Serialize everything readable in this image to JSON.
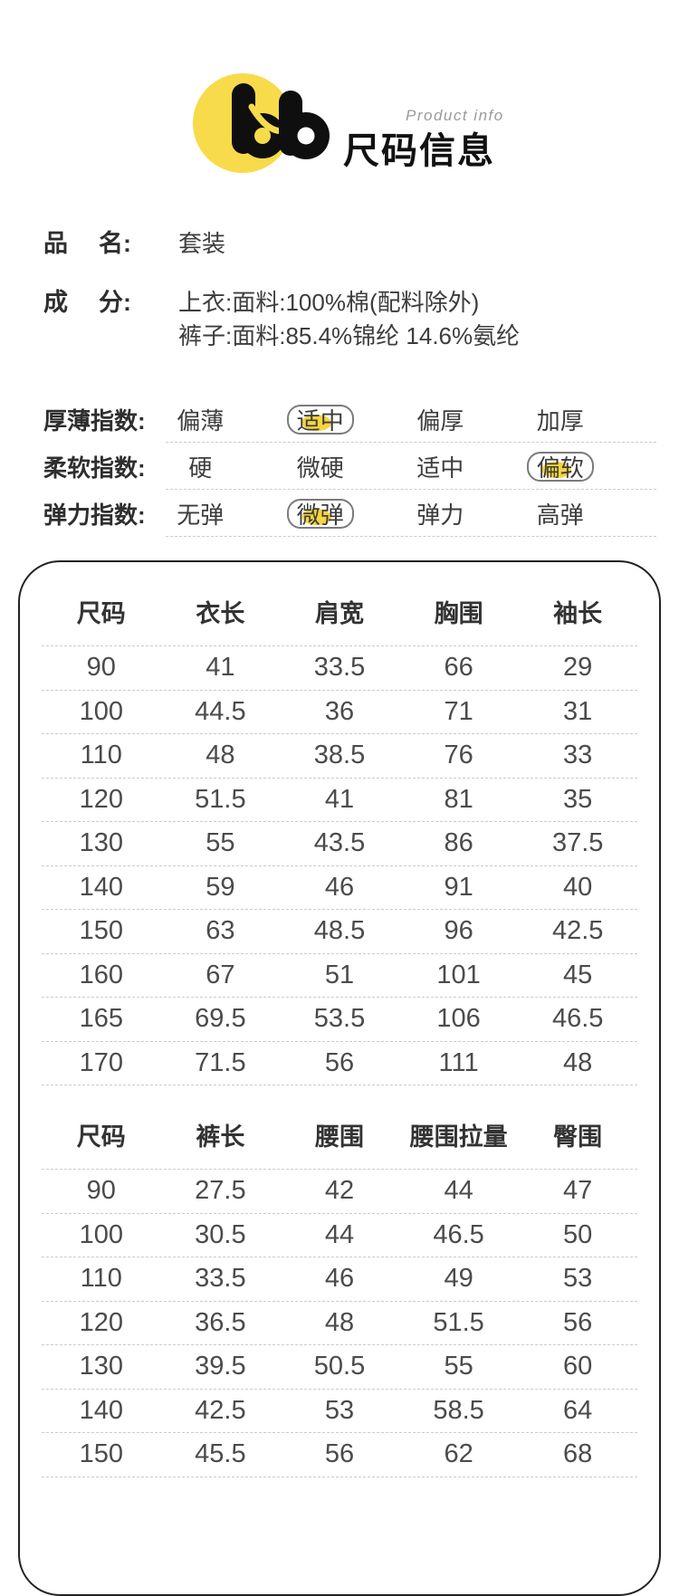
{
  "brand": {
    "logo_icon": "bb-logo",
    "tagline": "Product info",
    "title": "尺码信息"
  },
  "product": {
    "name_label": [
      "品",
      "名:"
    ],
    "name_value": "套装",
    "composition_label": [
      "成",
      "分:"
    ],
    "composition_lines": [
      "上衣:面料:100%棉(配料除外)",
      "裤子:面料:85.4%锦纶 14.6%氨纶"
    ]
  },
  "indexes": [
    {
      "label": "厚薄指数:",
      "options": [
        {
          "text": "偏薄",
          "selected": false
        },
        {
          "text": "适中",
          "selected": true
        },
        {
          "text": "偏厚",
          "selected": false
        },
        {
          "text": "加厚",
          "selected": false
        }
      ]
    },
    {
      "label": "柔软指数:",
      "options": [
        {
          "text": "硬",
          "selected": false
        },
        {
          "text": "微硬",
          "selected": false
        },
        {
          "text": "适中",
          "selected": false
        },
        {
          "text": "偏软",
          "selected": true
        }
      ]
    },
    {
      "label": "弹力指数:",
      "options": [
        {
          "text": "无弹",
          "selected": false
        },
        {
          "text": "微弹",
          "selected": true
        },
        {
          "text": "弹力",
          "selected": false
        },
        {
          "text": "高弹",
          "selected": false
        }
      ]
    }
  ],
  "size_tables": [
    {
      "headers": [
        "尺码",
        "衣长",
        "肩宽",
        "胸围",
        "袖长"
      ],
      "rows": [
        [
          "90",
          "41",
          "33.5",
          "66",
          "29"
        ],
        [
          "100",
          "44.5",
          "36",
          "71",
          "31"
        ],
        [
          "110",
          "48",
          "38.5",
          "76",
          "33"
        ],
        [
          "120",
          "51.5",
          "41",
          "81",
          "35"
        ],
        [
          "130",
          "55",
          "43.5",
          "86",
          "37.5"
        ],
        [
          "140",
          "59",
          "46",
          "91",
          "40"
        ],
        [
          "150",
          "63",
          "48.5",
          "96",
          "42.5"
        ],
        [
          "160",
          "67",
          "51",
          "101",
          "45"
        ],
        [
          "165",
          "69.5",
          "53.5",
          "106",
          "46.5"
        ],
        [
          "170",
          "71.5",
          "56",
          "111",
          "48"
        ]
      ]
    },
    {
      "headers": [
        "尺码",
        "裤长",
        "腰围",
        "腰围拉量",
        "臀围"
      ],
      "rows": [
        [
          "90",
          "27.5",
          "42",
          "44",
          "47"
        ],
        [
          "100",
          "30.5",
          "44",
          "46.5",
          "50"
        ],
        [
          "110",
          "33.5",
          "46",
          "49",
          "53"
        ],
        [
          "120",
          "36.5",
          "48",
          "51.5",
          "56"
        ],
        [
          "130",
          "39.5",
          "50.5",
          "55",
          "60"
        ],
        [
          "140",
          "42.5",
          "53",
          "58.5",
          "64"
        ],
        [
          "150",
          "45.5",
          "56",
          "62",
          "68"
        ]
      ]
    }
  ],
  "colors": {
    "accent_yellow": "#F8DB4B",
    "badge_highlight": "#F6D53E",
    "text_primary": "#333333",
    "text_secondary": "#4B4B4B",
    "table_border": "#222222",
    "separator": "#CCCCCC",
    "tagline_gray": "#9B9B9B"
  }
}
